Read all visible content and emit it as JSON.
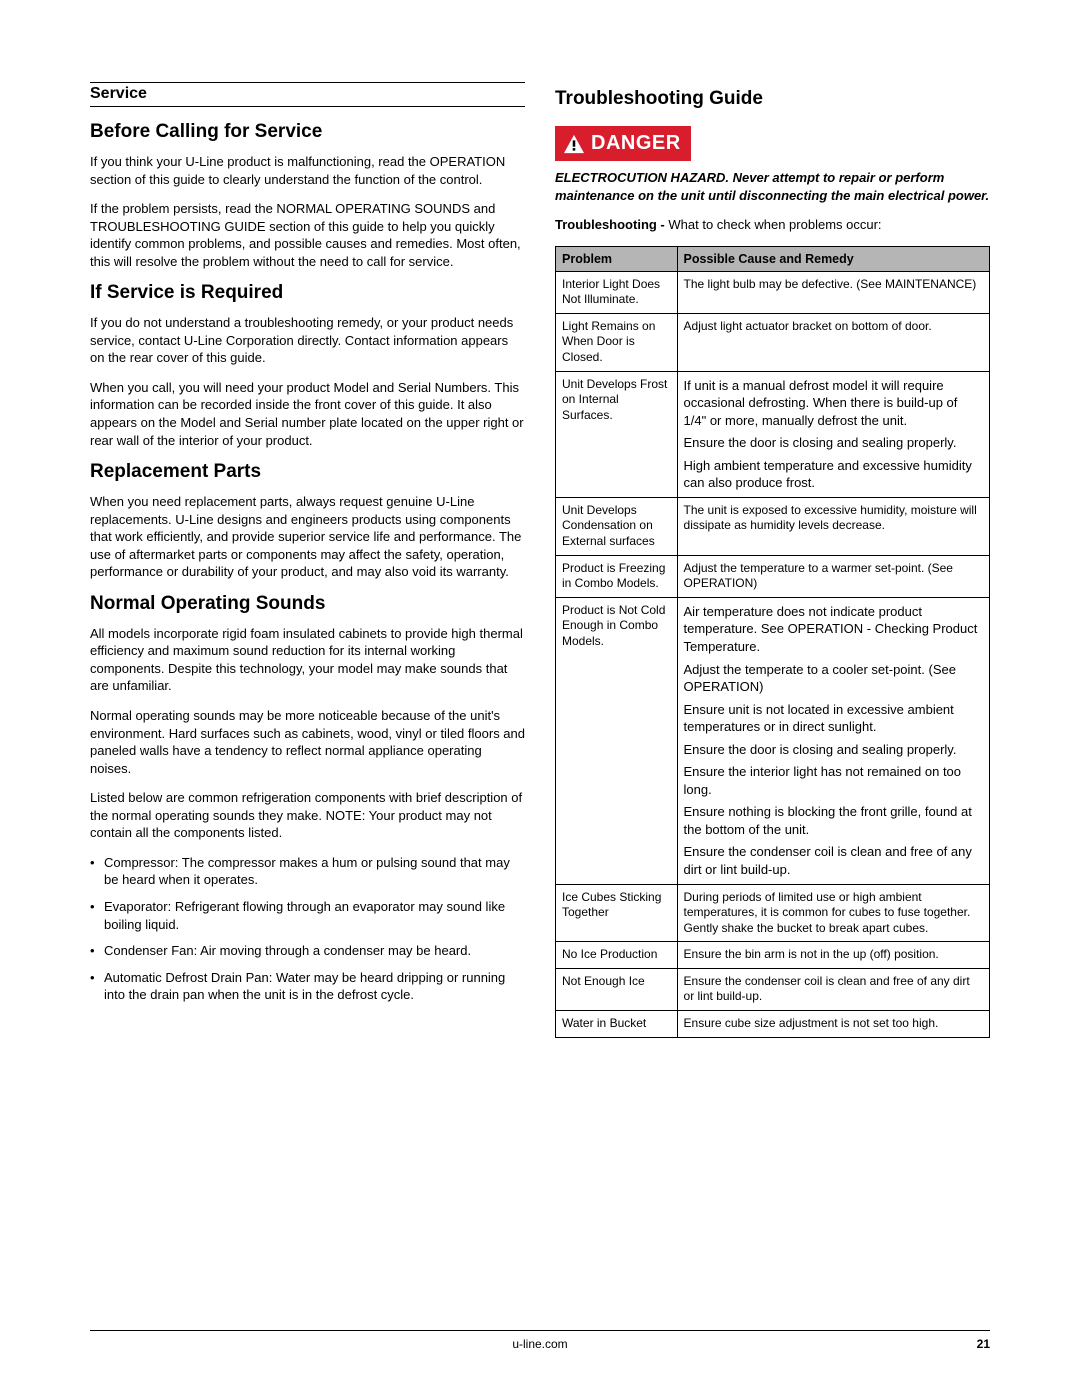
{
  "left": {
    "sectionBar": "Service",
    "h1": "Before Calling for Service",
    "p1": "If you think your U-Line product is malfunctioning, read the OPERATION section of this guide to clearly understand the function of the control.",
    "p2": "If the problem persists, read the NORMAL OPERATING SOUNDS and TROUBLESHOOTING GUIDE section of this guide to help you quickly identify common problems, and possible causes and remedies. Most often, this will resolve the problem without the need to call for service.",
    "h2": "If Service is Required",
    "p3": "If you do not understand a troubleshooting remedy, or your product needs service, contact U-Line Corporation directly. Contact information appears on the rear cover of this guide.",
    "p4": "When you call, you will need your product Model and Serial Numbers. This information can be recorded inside the front cover of this guide. It also appears on the Model and Serial number plate located on the upper right or rear wall of the interior of your product.",
    "h3": "Replacement Parts",
    "p5": "When you need replacement parts, always request genuine U-Line replacements. U-Line designs and engineers products using components that work efficiently, and provide superior service life and performance. The use of aftermarket parts or components may affect the safety, operation, performance or durability of your product, and may also void its warranty.",
    "h4": "Normal Operating Sounds",
    "p6": "All models incorporate rigid foam insulated cabinets to provide high thermal efficiency and maximum sound reduction for its internal working components. Despite this technology, your model may make sounds that are unfamiliar.",
    "p7": "Normal operating sounds may be more noticeable because of the unit's environment. Hard surfaces such as cabinets, wood, vinyl or tiled floors and paneled walls have a tendency to reflect normal appliance operating noises.",
    "p8": "Listed below are common refrigeration components with brief description of the normal operating sounds they make. NOTE: Your product may not contain all the components listed.",
    "bullets": [
      "Compressor: The compressor makes a hum or pulsing sound that may be heard when it operates.",
      "Evaporator: Refrigerant flowing through an evaporator may sound like boiling liquid.",
      "Condenser Fan: Air moving through a condenser may be heard.",
      "Automatic Defrost Drain Pan: Water may be heard dripping or running into the drain pan when the unit is in the defrost cycle."
    ]
  },
  "right": {
    "h1": "Troubleshooting Guide",
    "dangerLabel": "DANGER",
    "hazard": "ELECTROCUTION HAZARD. Never attempt to repair or perform maintenance on the unit until disconnecting the main electrical power.",
    "introBold": "Troubleshooting - ",
    "introRest": "What to check when problems occur:",
    "thProblem": "Problem",
    "thRemedy": "Possible Cause and Remedy",
    "rows": [
      {
        "problem": "Interior Light Does Not Illuminate.",
        "remedies": [
          "The light bulb may be defective. (See MAINTENANCE)"
        ]
      },
      {
        "problem": "Light Remains on When Door is Closed.",
        "remedies": [
          "Adjust light actuator bracket on bottom of door."
        ]
      },
      {
        "problem": "Unit Develops Frost on Internal Surfaces.",
        "remedies": [
          "If unit is a manual defrost model it will require occasional defrosting. When there is build-up of 1/4\" or more, manually defrost the unit.",
          "Ensure the door is closing and sealing properly.",
          "High ambient temperature and excessive humidity can also produce frost."
        ]
      },
      {
        "problem": "Unit Develops Condensation on External surfaces",
        "remedies": [
          "The unit is exposed to excessive humidity, moisture will dissipate as humidity levels decrease."
        ]
      },
      {
        "problem": "Product is Freezing in Combo Models.",
        "remedies": [
          "Adjust the temperature to a warmer set-point. (See OPERATION)"
        ]
      },
      {
        "problem": "Product is Not Cold Enough in Combo Models.",
        "remedies": [
          "Air temperature does not indicate product temperature. See OPERATION - Checking Product Temperature.",
          "Adjust the temperate to a cooler set-point. (See OPERATION)",
          "Ensure unit is not located in excessive ambient temperatures or in direct sunlight.",
          "Ensure the door is closing and sealing properly.",
          "Ensure the interior light has not remained on too long.",
          "Ensure nothing is blocking the front grille, found at the bottom of the unit.",
          "Ensure the condenser coil is clean and free of any dirt or lint build-up."
        ]
      },
      {
        "problem": "Ice Cubes Sticking Together",
        "remedies": [
          "During periods of limited use or high ambient temperatures, it is common for cubes to fuse together. Gently shake the bucket to break apart cubes."
        ]
      },
      {
        "problem": "No Ice Production",
        "remedies": [
          "Ensure the bin arm is not in the up (off) position."
        ]
      },
      {
        "problem": "Not Enough Ice",
        "remedies": [
          "Ensure the condenser coil is clean and free of any dirt or lint build-up."
        ]
      },
      {
        "problem": "Water in Bucket",
        "remedies": [
          "Ensure cube size adjustment is not set too high."
        ]
      }
    ]
  },
  "footer": {
    "site": "u-line.com",
    "page": "21"
  }
}
